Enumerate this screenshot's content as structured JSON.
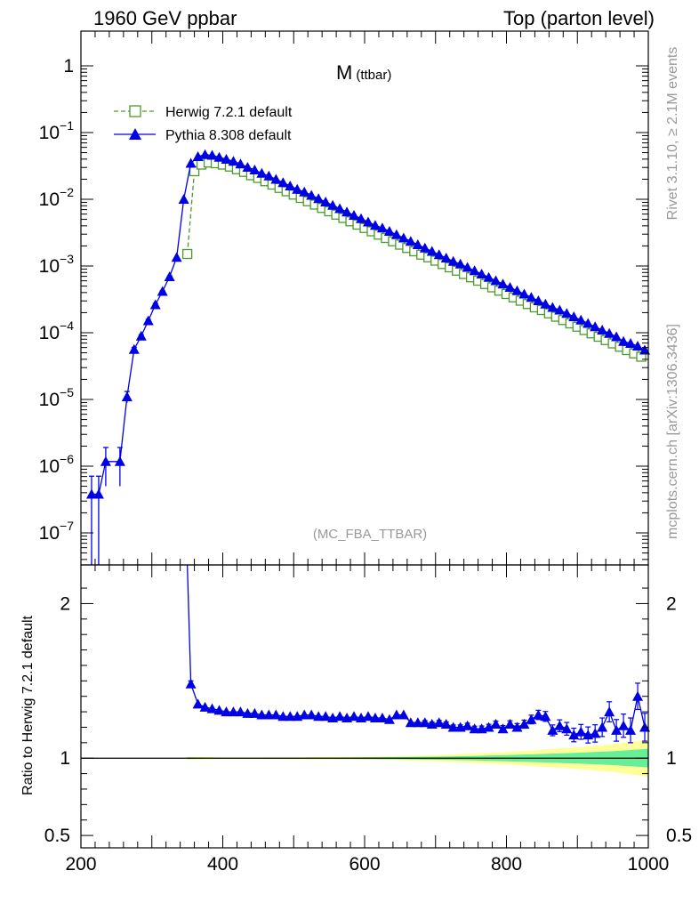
{
  "header": {
    "left": "1960 GeV ppbar",
    "right": "Top (parton level)"
  },
  "side": {
    "rivet": "Rivet 3.1.10, ≥ 2.1M events",
    "site": "mcplots.cern.ch [arXiv:1306.3436]"
  },
  "colors": {
    "herwig": "#4c9a2a",
    "pythia": "#0000e6",
    "band_outer": "#ffff99",
    "band_inner": "#66ee99",
    "frame": "#000000",
    "tag": "#999999"
  },
  "chart_data": [
    {
      "type": "line",
      "panel": "main",
      "title": "M",
      "title_sub": "(ttbar)",
      "tag": "(MC_FBA_TTBAR)",
      "yscale": "log",
      "xlim": [
        200,
        1000
      ],
      "ylim_log10": [
        -7.48,
        0.52
      ],
      "y_ticks": [
        {
          "label": "1",
          "exp": null,
          "value": 0
        },
        {
          "label": "10",
          "exp": "−1",
          "value": -1
        },
        {
          "label": "10",
          "exp": "−2",
          "value": -2
        },
        {
          "label": "10",
          "exp": "−3",
          "value": -3
        },
        {
          "label": "10",
          "exp": "−4",
          "value": -4
        },
        {
          "label": "10",
          "exp": "−5",
          "value": -5
        },
        {
          "label": "10",
          "exp": "−6",
          "value": -6
        },
        {
          "label": "10",
          "exp": "−7",
          "value": -7
        }
      ],
      "legend_position": "top-left",
      "series": [
        {
          "name": "Herwig 7.2.1 default",
          "style": "dashed-open-square",
          "x": [
            350,
            360,
            370,
            380,
            390,
            400,
            410,
            420,
            430,
            440,
            450,
            460,
            470,
            480,
            490,
            500,
            510,
            520,
            530,
            540,
            550,
            560,
            570,
            580,
            590,
            600,
            610,
            620,
            630,
            640,
            650,
            660,
            670,
            680,
            690,
            700,
            710,
            720,
            730,
            740,
            750,
            760,
            770,
            780,
            790,
            800,
            810,
            820,
            830,
            840,
            850,
            860,
            870,
            880,
            890,
            900,
            910,
            920,
            930,
            940,
            950,
            960,
            970,
            980,
            990
          ],
          "log10_y": [
            -2.82,
            -1.58,
            -1.48,
            -1.45,
            -1.46,
            -1.48,
            -1.51,
            -1.55,
            -1.59,
            -1.64,
            -1.68,
            -1.73,
            -1.78,
            -1.83,
            -1.88,
            -1.93,
            -1.98,
            -2.03,
            -2.08,
            -2.13,
            -2.18,
            -2.23,
            -2.28,
            -2.33,
            -2.38,
            -2.43,
            -2.48,
            -2.53,
            -2.58,
            -2.63,
            -2.68,
            -2.73,
            -2.78,
            -2.83,
            -2.87,
            -2.92,
            -2.97,
            -3.02,
            -3.07,
            -3.12,
            -3.17,
            -3.22,
            -3.27,
            -3.32,
            -3.37,
            -3.42,
            -3.47,
            -3.52,
            -3.57,
            -3.62,
            -3.66,
            -3.71,
            -3.76,
            -3.81,
            -3.86,
            -3.91,
            -3.96,
            -4.01,
            -4.06,
            -4.11,
            -4.16,
            -4.21,
            -4.26,
            -4.31,
            -4.36
          ]
        },
        {
          "name": "Pythia 8.308 default",
          "style": "solid-filled-triangle",
          "x": [
            215,
            225,
            235,
            255,
            265,
            275,
            285,
            295,
            305,
            315,
            325,
            335,
            345,
            355,
            365,
            375,
            385,
            395,
            405,
            415,
            425,
            435,
            445,
            455,
            465,
            475,
            485,
            495,
            505,
            515,
            525,
            535,
            545,
            555,
            565,
            575,
            585,
            595,
            605,
            615,
            625,
            635,
            645,
            655,
            665,
            675,
            685,
            695,
            705,
            715,
            725,
            735,
            745,
            755,
            765,
            775,
            785,
            795,
            805,
            815,
            825,
            835,
            845,
            855,
            865,
            875,
            885,
            895,
            905,
            915,
            925,
            935,
            945,
            955,
            965,
            975,
            985,
            995
          ],
          "log10_y": [
            -6.42,
            -6.42,
            -5.93,
            -5.93,
            -4.96,
            -4.25,
            -4.05,
            -3.82,
            -3.58,
            -3.38,
            -3.16,
            -2.87,
            -2.0,
            -1.46,
            -1.36,
            -1.33,
            -1.34,
            -1.37,
            -1.4,
            -1.43,
            -1.47,
            -1.52,
            -1.56,
            -1.61,
            -1.65,
            -1.7,
            -1.75,
            -1.8,
            -1.85,
            -1.89,
            -1.94,
            -1.99,
            -2.04,
            -2.09,
            -2.14,
            -2.19,
            -2.24,
            -2.29,
            -2.34,
            -2.39,
            -2.43,
            -2.48,
            -2.53,
            -2.58,
            -2.63,
            -2.68,
            -2.73,
            -2.78,
            -2.83,
            -2.88,
            -2.93,
            -2.97,
            -3.02,
            -3.07,
            -3.12,
            -3.17,
            -3.22,
            -3.27,
            -3.32,
            -3.37,
            -3.42,
            -3.47,
            -3.52,
            -3.57,
            -3.62,
            -3.66,
            -3.71,
            -3.76,
            -3.81,
            -3.86,
            -3.91,
            -3.96,
            -4.01,
            -4.06,
            -4.13,
            -4.16,
            -4.2,
            -4.26
          ],
          "log10_err_low": [
            -7.5,
            -7.5,
            -6.3,
            -6.3,
            -5.05,
            -4.28,
            -4.07,
            -3.84,
            -3.6,
            -3.39,
            -3.17
          ],
          "log10_err_high": [
            -6.15,
            -6.15,
            -5.72,
            -5.72,
            -4.88,
            -4.22,
            -4.03,
            -3.8,
            -3.56,
            -3.37,
            -3.15
          ]
        }
      ]
    },
    {
      "type": "line",
      "panel": "ratio",
      "ylabel": "Ratio to Herwig 7.2.1 default",
      "xlim": [
        200,
        1000
      ],
      "ylim": [
        0.42,
        2.25
      ],
      "y_ticks": [
        {
          "label": "0.5",
          "value": 0.5
        },
        {
          "label": "1",
          "value": 1.0
        },
        {
          "label": "2",
          "value": 2.0
        }
      ],
      "x_ticks": [
        {
          "label": "200",
          "value": 200
        },
        {
          "label": "400",
          "value": 400
        },
        {
          "label": "600",
          "value": 600
        },
        {
          "label": "800",
          "value": 800
        },
        {
          "label": "1000",
          "value": 1000
        }
      ],
      "reference": 1.0,
      "bands": {
        "x": [
          350,
          400,
          450,
          500,
          550,
          600,
          650,
          700,
          750,
          800,
          850,
          900,
          950,
          1000
        ],
        "outer_halfwidth": [
          0.01,
          0.005,
          0.005,
          0.006,
          0.008,
          0.01,
          0.014,
          0.02,
          0.03,
          0.04,
          0.055,
          0.07,
          0.09,
          0.12
        ],
        "inner_halfwidth": [
          0.005,
          0.003,
          0.003,
          0.003,
          0.004,
          0.005,
          0.007,
          0.01,
          0.014,
          0.02,
          0.027,
          0.035,
          0.045,
          0.06
        ]
      },
      "series": [
        {
          "name": "Pythia 8.308 default",
          "x": [
            355,
            365,
            375,
            385,
            395,
            405,
            415,
            425,
            435,
            445,
            455,
            465,
            475,
            485,
            495,
            505,
            515,
            525,
            535,
            545,
            555,
            565,
            575,
            585,
            595,
            605,
            615,
            625,
            635,
            645,
            655,
            665,
            675,
            685,
            695,
            705,
            715,
            725,
            735,
            745,
            755,
            765,
            775,
            785,
            795,
            805,
            815,
            825,
            835,
            845,
            855,
            865,
            875,
            885,
            895,
            905,
            915,
            925,
            935,
            945,
            955,
            965,
            975,
            985,
            995
          ],
          "y": [
            1.48,
            1.35,
            1.33,
            1.32,
            1.31,
            1.3,
            1.3,
            1.3,
            1.29,
            1.29,
            1.28,
            1.28,
            1.28,
            1.27,
            1.27,
            1.27,
            1.28,
            1.28,
            1.27,
            1.27,
            1.26,
            1.27,
            1.26,
            1.27,
            1.26,
            1.27,
            1.26,
            1.26,
            1.25,
            1.28,
            1.28,
            1.23,
            1.23,
            1.23,
            1.22,
            1.23,
            1.22,
            1.2,
            1.2,
            1.21,
            1.19,
            1.19,
            1.2,
            1.22,
            1.19,
            1.22,
            1.2,
            1.22,
            1.25,
            1.28,
            1.27,
            1.18,
            1.21,
            1.19,
            1.15,
            1.17,
            1.15,
            1.16,
            1.2,
            1.3,
            1.18,
            1.21,
            1.18,
            1.4,
            1.2
          ],
          "err": [
            0.02,
            0.01,
            0.01,
            0.01,
            0.01,
            0.01,
            0.01,
            0.01,
            0.01,
            0.01,
            0.01,
            0.01,
            0.01,
            0.01,
            0.01,
            0.01,
            0.01,
            0.01,
            0.01,
            0.01,
            0.01,
            0.01,
            0.01,
            0.01,
            0.01,
            0.01,
            0.01,
            0.01,
            0.01,
            0.012,
            0.012,
            0.012,
            0.012,
            0.013,
            0.013,
            0.014,
            0.014,
            0.015,
            0.015,
            0.016,
            0.017,
            0.018,
            0.019,
            0.02,
            0.021,
            0.022,
            0.024,
            0.026,
            0.028,
            0.03,
            0.032,
            0.035,
            0.038,
            0.041,
            0.044,
            0.048,
            0.052,
            0.056,
            0.06,
            0.065,
            0.07,
            0.075,
            0.08,
            0.085,
            0.09
          ]
        }
      ]
    }
  ]
}
